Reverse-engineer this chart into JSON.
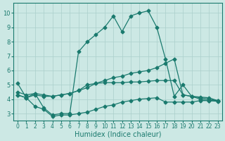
{
  "xlabel": "Humidex (Indice chaleur)",
  "bg_color": "#cce8e4",
  "grid_color": "#aacfcb",
  "line_color": "#1a7a6e",
  "xlim": [
    -0.5,
    23.5
  ],
  "ylim": [
    2.5,
    10.7
  ],
  "xticks": [
    0,
    1,
    2,
    3,
    4,
    5,
    6,
    7,
    8,
    9,
    10,
    11,
    12,
    13,
    14,
    15,
    16,
    17,
    18,
    19,
    20,
    21,
    22,
    23
  ],
  "yticks": [
    3,
    4,
    5,
    6,
    7,
    8,
    9,
    10
  ],
  "line1_x": [
    0,
    1,
    2,
    3,
    4,
    5,
    6,
    7,
    8,
    9,
    10,
    11,
    12,
    13,
    14,
    15,
    16,
    17,
    18,
    19,
    20,
    21,
    22,
    23
  ],
  "line1_y": [
    5.1,
    4.1,
    4.4,
    3.4,
    2.9,
    3.0,
    3.0,
    7.3,
    8.0,
    8.5,
    9.0,
    9.8,
    8.7,
    9.8,
    10.0,
    10.15,
    9.0,
    6.8,
    4.2,
    5.0,
    4.2,
    4.0,
    3.9,
    3.9
  ],
  "line2_x": [
    0,
    1,
    2,
    3,
    4,
    5,
    6,
    7,
    8,
    9,
    10,
    11,
    12,
    13,
    14,
    15,
    16,
    17,
    18,
    19,
    20,
    21,
    22,
    23
  ],
  "line2_y": [
    4.5,
    4.3,
    4.4,
    4.3,
    4.2,
    4.3,
    4.4,
    4.6,
    4.8,
    5.1,
    5.3,
    5.5,
    5.6,
    5.8,
    5.9,
    6.0,
    6.2,
    6.5,
    6.8,
    4.3,
    4.2,
    4.15,
    4.1,
    3.9
  ],
  "line3_x": [
    0,
    1,
    2,
    3,
    4,
    5,
    6,
    7,
    8,
    9,
    10,
    11,
    12,
    13,
    14,
    15,
    16,
    17,
    18,
    19,
    20,
    21,
    22,
    23
  ],
  "line3_y": [
    4.3,
    4.1,
    3.5,
    3.3,
    2.8,
    2.9,
    2.9,
    3.0,
    3.1,
    3.3,
    3.5,
    3.6,
    3.8,
    3.9,
    4.0,
    4.05,
    4.1,
    3.8,
    3.8,
    3.8,
    3.8,
    3.9,
    3.9,
    3.85
  ],
  "line4_x": [
    0,
    1,
    2,
    3,
    4,
    5,
    6,
    7,
    8,
    9,
    10,
    11,
    12,
    13,
    14,
    15,
    16,
    17,
    18,
    19,
    20,
    21,
    22,
    23
  ],
  "line4_y": [
    4.3,
    4.1,
    4.3,
    4.2,
    4.2,
    4.3,
    4.4,
    4.6,
    5.0,
    5.1,
    5.15,
    5.15,
    5.15,
    5.2,
    5.2,
    5.25,
    5.3,
    5.3,
    5.3,
    4.3,
    4.2,
    4.1,
    4.0,
    3.9
  ]
}
